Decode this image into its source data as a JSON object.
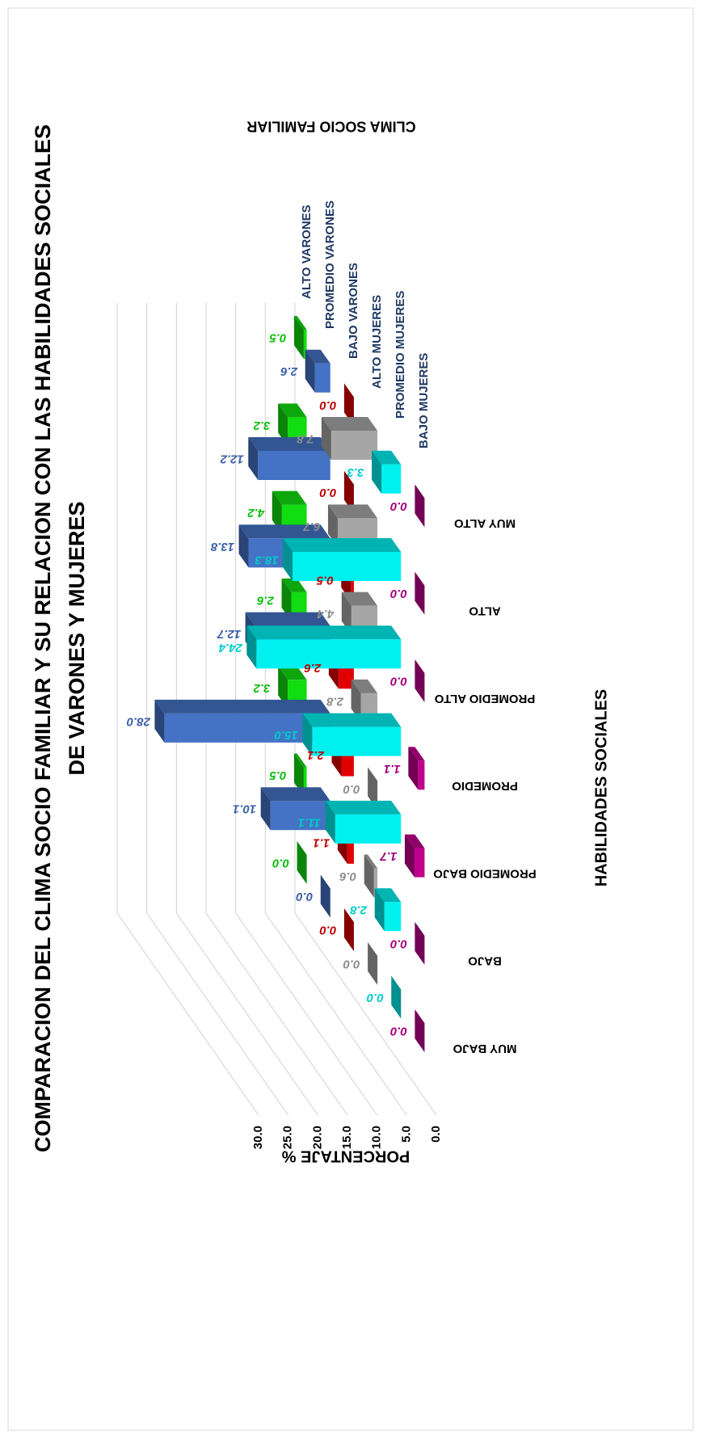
{
  "chart_data": {
    "type": "bar3d",
    "title": [
      "COMPARACION DEL CLIMA SOCIO FAMILIAR Y SU RELACION CON LAS HABILIDADES SOCIALES",
      "DE VARONES Y MUJERES"
    ],
    "x_label": "HABILIDADES SOCIALES",
    "y_label": "PORCENTAJE %",
    "z_label": "CLIMA SOCIO FAMILIAR",
    "categories": [
      "MUY BAJO",
      "BAJO",
      "PROMEDIO BAJO",
      "PROMEDIO",
      "PROMEDIO ALTO",
      "ALTO",
      "MUY ALTO"
    ],
    "ylim": [
      0,
      30
    ],
    "yticks": [
      {
        "value": 0,
        "label": "0.0"
      },
      {
        "value": 5,
        "label": "5.0"
      },
      {
        "value": 10,
        "label": "10.0"
      },
      {
        "value": 15,
        "label": "15.0"
      },
      {
        "value": 20,
        "label": "20.0"
      },
      {
        "value": 25,
        "label": "25.0"
      },
      {
        "value": 30,
        "label": "30.0"
      }
    ],
    "grid": true,
    "series": [
      {
        "name": "ALTO VARONES",
        "color": "#11dd11",
        "values": [
          0,
          0.5,
          3.2,
          2.6,
          4.2,
          3.2,
          0.5
        ],
        "value_labels": [
          "0.0",
          "0.5",
          "3.2",
          "2.6",
          "4.2",
          "3.2",
          "0.5"
        ]
      },
      {
        "name": "PROMEDIO VARONES",
        "color": "#4472c4",
        "values": [
          0,
          10.1,
          28,
          12.7,
          13.8,
          12.2,
          2.6
        ],
        "value_labels": [
          "0.0",
          "10.1",
          "28.0",
          "12.7",
          "13.8",
          "12.2",
          "2.6"
        ]
      },
      {
        "name": "BAJO VARONES",
        "color": "#e00000",
        "values": [
          0,
          1.1,
          2.1,
          2.6,
          0.5,
          0,
          0
        ],
        "value_labels": [
          "0.0",
          "1.1",
          "2.1",
          "2.6",
          "0.5",
          "0.0",
          "0.0"
        ]
      },
      {
        "name": "ALTO MUJERES",
        "color": "#a6a6a6",
        "values": [
          0,
          0.6,
          0,
          2.8,
          4.4,
          6.7,
          7.8
        ],
        "value_labels": [
          "0.0",
          "0.6",
          "0.0",
          "2.8",
          "4.4",
          "6.7",
          "7.8"
        ]
      },
      {
        "name": "PROMEDIO MUJERES",
        "color": "#00f0f0",
        "values": [
          0,
          2.8,
          11.1,
          15,
          24.4,
          18.3,
          3.3
        ],
        "value_labels": [
          "0.0",
          "2.8",
          "11.1",
          "15.0",
          "24.4",
          "18.3",
          "3.3"
        ]
      },
      {
        "name": "BAJO MUJERES",
        "color": "#c0008c",
        "values": [
          0,
          0,
          1.7,
          1.1,
          0,
          0,
          0
        ],
        "value_labels": [
          "0.0",
          "0.0",
          "1.7",
          "1.1",
          "0.0",
          "0.0",
          "0.0"
        ]
      }
    ]
  }
}
